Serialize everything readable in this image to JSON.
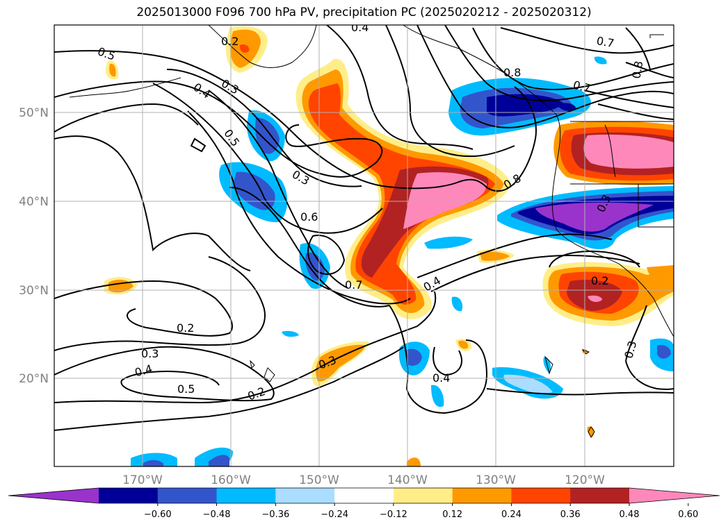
{
  "title": "2025013000 F096 700 hPa PV, precipitation PC (2025020212 - 2025020312)",
  "lat_labels": [
    "50°N",
    "40°N",
    "30°N",
    "20°N"
  ],
  "lon_labels": [
    "170°W",
    "160°W",
    "150°W",
    "140°W",
    "130°W",
    "120°W"
  ],
  "colorbar": {
    "ticks": [
      "−0.60",
      "−0.48",
      "−0.36",
      "−0.24",
      "−0.12",
      "0.12",
      "0.24",
      "0.36",
      "0.48",
      "0.60"
    ],
    "colors": [
      "#9933cc",
      "#000099",
      "#3355cc",
      "#00bbff",
      "#aaddff",
      "#ffffff",
      "#ffee88",
      "#ff9900",
      "#ff4400",
      "#b22222",
      "#ff88bb"
    ]
  },
  "contour_labels": [
    "0.5",
    "0.4",
    "0.3",
    "0.5",
    "0.3",
    "0.6",
    "0.7",
    "0.4",
    "0.8",
    "0.8",
    "0.7",
    "0.7",
    "0.8",
    "0.2",
    "0.3",
    "0.4",
    "0.5",
    "0.2",
    "0.3",
    "0.4",
    "0.2",
    "0.3",
    "0.4",
    "0.2",
    "0.3"
  ]
}
